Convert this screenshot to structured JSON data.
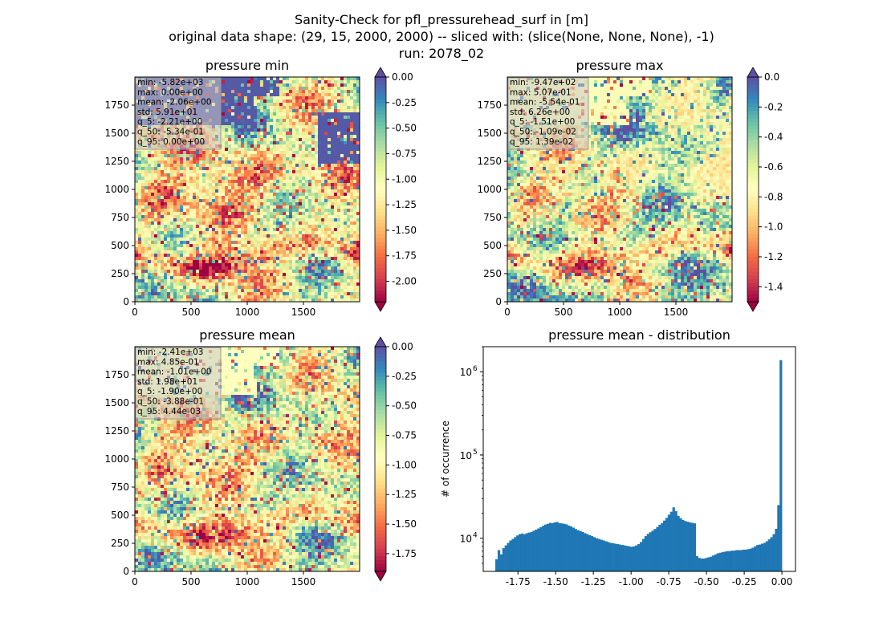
{
  "figure": {
    "title_lines": [
      "Sanity-Check for pfl_pressurehead_surf in [m]",
      "original data shape: (29, 15, 2000, 2000) -- sliced with: (slice(None, None, None), -1)",
      "run: 2078_02"
    ]
  },
  "chart_data": [
    {
      "type": "heatmap",
      "title": "pressure min",
      "xlim": [
        0,
        2000
      ],
      "ylim": [
        0,
        2000
      ],
      "xticks": [
        "0",
        "500",
        "1000",
        "1500"
      ],
      "yticks": [
        "0",
        "250",
        "500",
        "750",
        "1000",
        "1250",
        "1500",
        "1750"
      ],
      "colormap": "Spectral",
      "colorbar": {
        "range": [
          -2.2,
          0.0
        ],
        "ticks": [
          "0.00",
          "-0.25",
          "-0.50",
          "-0.75",
          "-1.00",
          "-1.25",
          "-1.50",
          "-1.75",
          "-2.00"
        ],
        "extend_top": true,
        "extend_bottom": true
      },
      "stats": [
        "min: -5.82e+03",
        "max: 0.00e+00",
        "mean: -2.06e+00",
        "std: 5.91e+01",
        "q_5: -2.21e+00",
        "q_50: -5.34e-01",
        "q_95: 0.00e+00"
      ]
    },
    {
      "type": "heatmap",
      "title": "pressure max",
      "xlim": [
        0,
        2000
      ],
      "ylim": [
        0,
        2000
      ],
      "xticks": [
        "0",
        "500",
        "1000",
        "1500"
      ],
      "yticks": [
        "0",
        "250",
        "500",
        "750",
        "1000",
        "1250",
        "1500",
        "1750"
      ],
      "colormap": "Spectral",
      "colorbar": {
        "range": [
          -1.5,
          0.0
        ],
        "ticks": [
          "0.0",
          "-0.2",
          "-0.4",
          "-0.6",
          "-0.8",
          "-1.0",
          "-1.2",
          "-1.4"
        ],
        "extend_top": true,
        "extend_bottom": true
      },
      "stats": [
        "min: -9.47e+02",
        "max: 5.07e-01",
        "mean: -5.54e-01",
        "std: 6.26e+00",
        "q_5: -1.51e+00",
        "q_50: -1.09e-02",
        "q_95: 1.39e-02"
      ]
    },
    {
      "type": "heatmap",
      "title": "pressure mean",
      "xlim": [
        0,
        2000
      ],
      "ylim": [
        0,
        2000
      ],
      "xticks": [
        "0",
        "500",
        "1000",
        "1500"
      ],
      "yticks": [
        "0",
        "250",
        "500",
        "750",
        "1000",
        "1250",
        "1500",
        "1750"
      ],
      "colormap": "Spectral",
      "colorbar": {
        "range": [
          -1.9,
          0.0
        ],
        "ticks": [
          "0.00",
          "-0.25",
          "-0.50",
          "-0.75",
          "-1.00",
          "-1.25",
          "-1.50",
          "-1.75"
        ],
        "extend_top": true,
        "extend_bottom": true
      },
      "stats": [
        "min: -2.41e+03",
        "max: 4.85e-01",
        "mean: -1.01e+00",
        "std: 1.98e+01",
        "q_5: -1.90e+00",
        "q_50: -3.88e-01",
        "q_95: 4.44e-03"
      ]
    },
    {
      "type": "bar",
      "title": "pressure mean - distribution",
      "xlabel": "",
      "ylabel": "# of occurrence",
      "yscale": "log",
      "xlim": [
        -1.98,
        0.09
      ],
      "ylim": [
        4000,
        2000000
      ],
      "xticks": [
        "-1.75",
        "-1.50",
        "-1.25",
        "-1.00",
        "-0.75",
        "-0.50",
        "-0.25",
        "0.00"
      ],
      "yticks": [
        {
          "base": "10",
          "exp": "4"
        },
        {
          "base": "10",
          "exp": "5"
        },
        {
          "base": "10",
          "exp": "6"
        }
      ],
      "color": "#1f77b4",
      "bin_range": [
        -1.9,
        0.0
      ],
      "counts": [
        5600,
        7200,
        6400,
        7600,
        8200,
        8800,
        9400,
        9800,
        10300,
        10800,
        11200,
        11400,
        11200,
        11500,
        11700,
        11900,
        12300,
        12700,
        13100,
        13600,
        14100,
        14600,
        14900,
        15300,
        15200,
        15500,
        15700,
        15200,
        15100,
        14900,
        14700,
        14200,
        13900,
        13400,
        12900,
        12500,
        12200,
        11900,
        11500,
        11200,
        10900,
        10600,
        10300,
        10000,
        9800,
        9600,
        9400,
        9200,
        9000,
        8800,
        8700,
        8600,
        8500,
        8400,
        8300,
        8200,
        8100,
        8000,
        7900,
        8000,
        8200,
        8500,
        9000,
        9800,
        10600,
        11300,
        11800,
        12300,
        12900,
        13600,
        14500,
        15200,
        16300,
        17600,
        19200,
        20800,
        23500,
        21200,
        18600,
        17400,
        16600,
        16100,
        15800,
        15500,
        15300,
        15100,
        6100,
        5800,
        5700,
        5700,
        5800,
        5900,
        6000,
        6200,
        6400,
        6600,
        6700,
        6800,
        6900,
        7000,
        7000,
        7100,
        7100,
        7200,
        7200,
        7200,
        7300,
        7300,
        7400,
        7500,
        7700,
        8000,
        8300,
        8400,
        8600,
        8800,
        9200,
        9700,
        10300,
        11200,
        13000,
        25000,
        1380000
      ]
    }
  ]
}
